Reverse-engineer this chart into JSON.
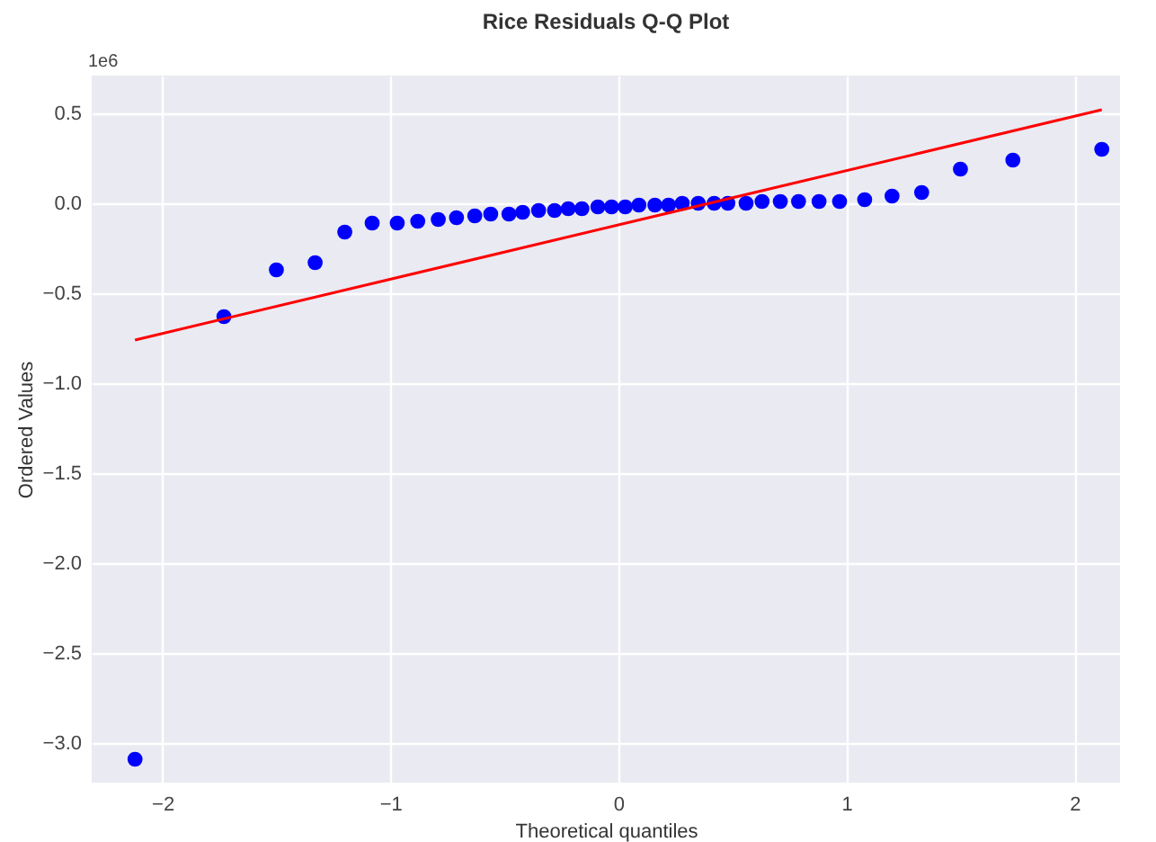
{
  "chart_data": {
    "type": "scatter",
    "title": "Rice Residuals Q-Q Plot",
    "xlabel": "Theoretical quantiles",
    "ylabel": "Ordered Values",
    "annotations": [
      "1e6"
    ],
    "xlim": [
      -2.31,
      2.2
    ],
    "ylim": [
      -3.22,
      0.71
    ],
    "xticks": [
      {
        "value": -2,
        "label": "−2"
      },
      {
        "value": -1,
        "label": "−1"
      },
      0,
      1,
      2
    ],
    "yticks": [
      {
        "value": -3,
        "label": "−3.0"
      },
      {
        "value": -2.5,
        "label": "−2.5"
      },
      {
        "value": -2,
        "label": "−2.0"
      },
      {
        "value": -1.5,
        "label": "−1.5"
      },
      {
        "value": -1,
        "label": "−1.0"
      },
      {
        "value": -0.5,
        "label": "−0.5"
      },
      {
        "value": 0,
        "label": "0.0"
      },
      {
        "value": 0.5,
        "label": "0.5"
      }
    ],
    "grid": true,
    "series": [
      {
        "marker": "circle",
        "color": "#0000ff",
        "x": [
          -2.12,
          -1.73,
          -1.5,
          -1.33,
          -1.2,
          -1.08,
          -0.97,
          -0.88,
          -0.79,
          -0.71,
          -0.63,
          -0.56,
          -0.48,
          -0.42,
          -0.35,
          -0.28,
          -0.22,
          -0.16,
          -0.09,
          -0.03,
          0.03,
          0.09,
          0.16,
          0.22,
          0.28,
          0.35,
          0.42,
          0.48,
          0.56,
          0.63,
          0.71,
          0.79,
          0.88,
          0.97,
          1.08,
          1.2,
          1.33,
          1.5,
          1.73,
          2.12
        ],
        "values": [
          -3.09,
          -0.63,
          -0.37,
          -0.33,
          -0.16,
          -0.11,
          -0.11,
          -0.1,
          -0.09,
          -0.08,
          -0.07,
          -0.06,
          -0.06,
          -0.05,
          -0.04,
          -0.04,
          -0.03,
          -0.03,
          -0.02,
          -0.02,
          -0.02,
          -0.01,
          -0.01,
          -0.01,
          0,
          0,
          0,
          0,
          0,
          0.01,
          0.01,
          0.01,
          0.01,
          0.01,
          0.02,
          0.04,
          0.06,
          0.19,
          0.24,
          0.3
        ]
      },
      {
        "type": "line",
        "color": "#ff0000",
        "x": [
          -2.12,
          2.12
        ],
        "values": [
          -0.76,
          0.52
        ]
      }
    ]
  }
}
